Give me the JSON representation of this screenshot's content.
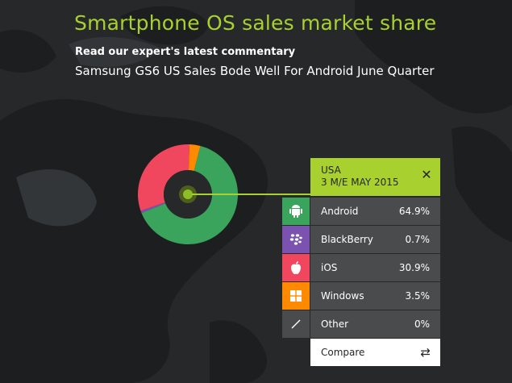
{
  "title": "Smartphone OS sales market share",
  "subheading": "Read our expert's latest commentary",
  "article_link": "Samsung GS6 US Sales Bode Well For Android June Quarter",
  "panel": {
    "region": "USA",
    "period": "3 M/E MAY 2015",
    "close_icon": "close-icon",
    "compare_label": "Compare",
    "compare_icon": "swap-arrows-icon"
  },
  "chart_data": {
    "type": "pie",
    "title": "Smartphone OS sales market share",
    "region": "USA",
    "period": "3 M/E MAY 2015",
    "categories": [
      "Android",
      "BlackBerry",
      "iOS",
      "Windows",
      "Other"
    ],
    "values": [
      64.9,
      0.7,
      30.9,
      3.5,
      0
    ],
    "labels": [
      "64.9%",
      "0.7%",
      "30.9%",
      "3.5%",
      "0%"
    ],
    "colors": [
      "#3aa35c",
      "#7b52b0",
      "#f0465e",
      "#ff8a00",
      "#4a4b4c"
    ],
    "icons": [
      "android-icon",
      "blackberry-icon",
      "apple-icon",
      "windows-icon",
      "slash-icon"
    ],
    "donut": true,
    "center_color": "#8cbf26"
  }
}
